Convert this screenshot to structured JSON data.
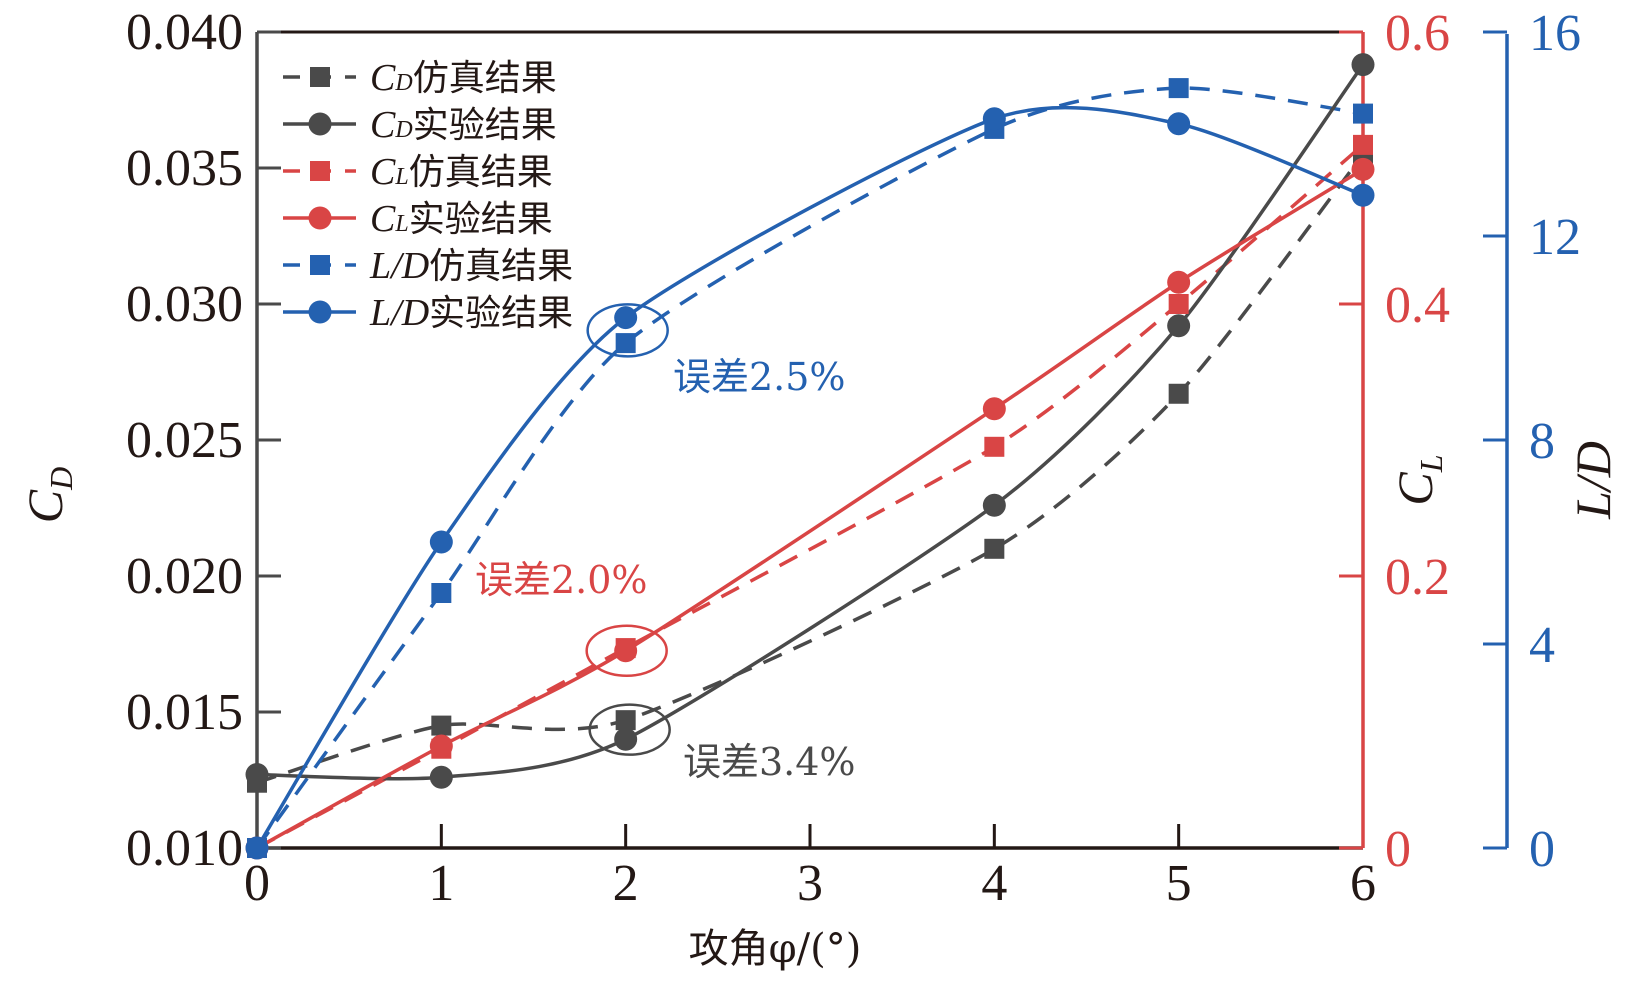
{
  "chart_data": {
    "type": "line",
    "title": "",
    "xlabel": "攻角φ/(°)",
    "x": [
      0,
      1,
      2,
      4,
      5,
      6
    ],
    "xticks": [
      "0",
      "1",
      "2",
      "3",
      "4",
      "5",
      "6"
    ],
    "xlim": [
      0,
      6
    ],
    "grid": false,
    "axes": {
      "left": {
        "label_main": "C",
        "label_sub": "D",
        "ylim": [
          0.01,
          0.04
        ],
        "ticks": [
          "0.010",
          "0.015",
          "0.020",
          "0.025",
          "0.030",
          "0.035",
          "0.040"
        ],
        "tick_values": [
          0.01,
          0.015,
          0.02,
          0.025,
          0.03,
          0.035,
          0.04
        ],
        "color": "#4a4a4a"
      },
      "right1": {
        "label_main": "C",
        "label_sub": "L",
        "ylim": [
          0,
          0.6
        ],
        "ticks": [
          "0",
          "0.2",
          "0.4",
          "0.6"
        ],
        "tick_values": [
          0,
          0.2,
          0.4,
          0.6
        ],
        "color": "#d94545"
      },
      "right2": {
        "label": "L/D",
        "ylim": [
          0,
          16
        ],
        "ticks": [
          "0",
          "4",
          "8",
          "12",
          "16"
        ],
        "tick_values": [
          0,
          4,
          8,
          12,
          16
        ],
        "color": "#2461b0"
      }
    },
    "series": [
      {
        "name": "CD仿真结果",
        "legend_main": "C",
        "legend_sub": "D",
        "legend_rest": "仿真结果",
        "axis": "left",
        "style": "dashed",
        "marker": "square",
        "color": "#4a4a4a",
        "values": [
          0.0124,
          0.0145,
          0.0147,
          0.021,
          0.0267,
          0.0355
        ]
      },
      {
        "name": "CD实验结果",
        "legend_main": "C",
        "legend_sub": "D",
        "legend_rest": "实验结果",
        "axis": "left",
        "style": "solid",
        "marker": "circle",
        "color": "#4a4a4a",
        "values": [
          0.0127,
          0.0126,
          0.014,
          0.0226,
          0.0292,
          0.0388
        ]
      },
      {
        "name": "CL仿真结果",
        "legend_main": "C",
        "legend_sub": "L",
        "legend_rest": "仿真结果",
        "axis": "right1",
        "style": "dashed",
        "marker": "square",
        "color": "#d94545",
        "values": [
          0.0,
          0.073,
          0.147,
          0.295,
          0.4,
          0.517
        ]
      },
      {
        "name": "CL实验结果",
        "legend_main": "C",
        "legend_sub": "L",
        "legend_rest": "实验结果",
        "axis": "right1",
        "style": "solid",
        "marker": "circle",
        "color": "#d94545",
        "values": [
          0.0,
          0.075,
          0.145,
          0.323,
          0.416,
          0.499
        ]
      },
      {
        "name": "L/D仿真结果",
        "legend_main": "L/D",
        "legend_sub": "",
        "legend_rest": "仿真结果",
        "axis": "right2",
        "style": "dashed",
        "marker": "square",
        "color": "#2461b0",
        "values": [
          0.0,
          5.0,
          9.9,
          14.1,
          14.9,
          14.4
        ]
      },
      {
        "name": "L/D实验结果",
        "legend_main": "L/D",
        "legend_sub": "",
        "legend_rest": "实验结果",
        "axis": "right2",
        "style": "solid",
        "marker": "circle",
        "color": "#2461b0",
        "values": [
          0.0,
          6.0,
          10.4,
          14.3,
          14.2,
          12.8
        ]
      }
    ],
    "legend_position": "top-left",
    "annotations": [
      {
        "text": "误差2.5%",
        "series": "L/D",
        "x": 2,
        "color": "#2461b0"
      },
      {
        "text": "误差2.0%",
        "series": "CL",
        "x": 2,
        "color": "#d94545"
      },
      {
        "text": "误差3.4%",
        "series": "CD",
        "x": 2,
        "color": "#4a4a4a"
      }
    ]
  }
}
